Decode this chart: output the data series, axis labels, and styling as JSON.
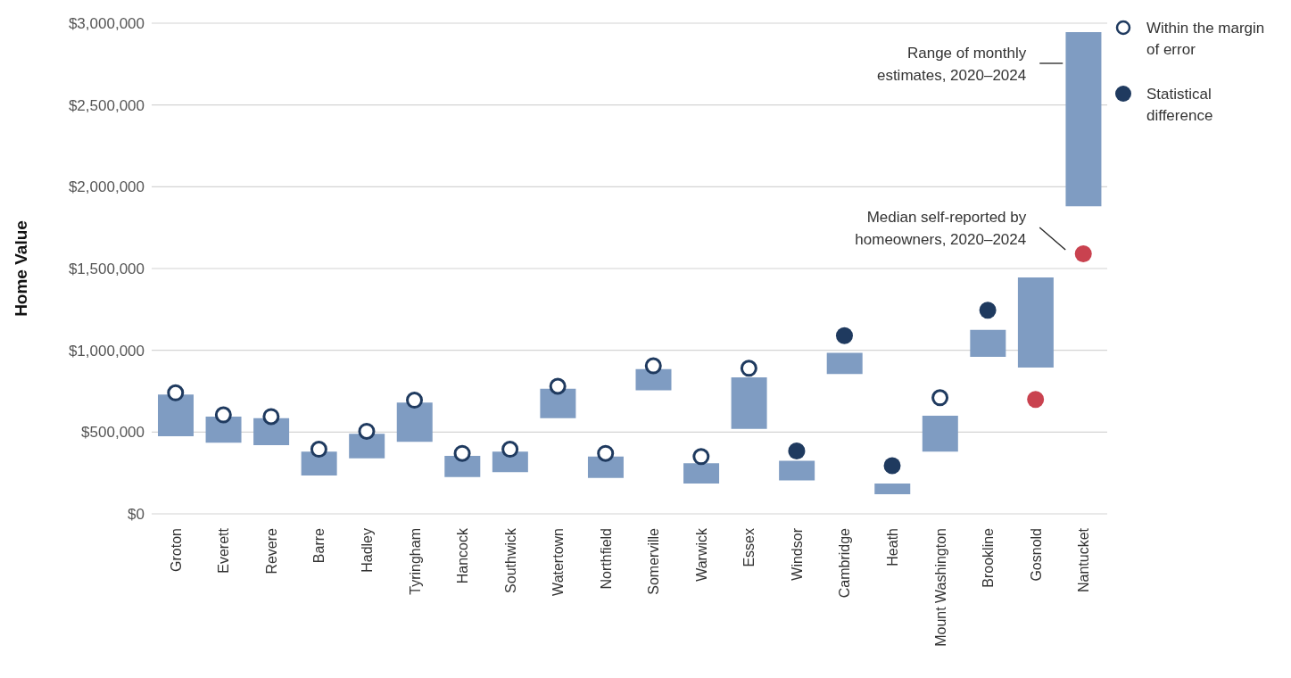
{
  "chart_data": {
    "type": "bar",
    "ylabel": "Home Value",
    "categories": [
      "Groton",
      "Everett",
      "Revere",
      "Barre",
      "Hadley",
      "Tyringham",
      "Hancock",
      "Southwick",
      "Watertown",
      "Northfield",
      "Somerville",
      "Warwick",
      "Essex",
      "Windsor",
      "Cambridge",
      "Heath",
      "Mount Washington",
      "Brookline",
      "Gosnold",
      "Nantucket"
    ],
    "series": [
      {
        "color": "#7f9cc2",
        "base": [
          475000,
          435000,
          420000,
          235000,
          340000,
          440000,
          225000,
          255000,
          585000,
          220000,
          755000,
          185000,
          520000,
          205000,
          855000,
          120000,
          380000,
          960000,
          895000,
          1880000
        ],
        "values": [
          255000,
          160000,
          165000,
          145000,
          150000,
          240000,
          130000,
          125000,
          180000,
          130000,
          130000,
          125000,
          315000,
          120000,
          130000,
          65000,
          220000,
          165000,
          550000,
          1065000
        ]
      },
      {
        "type": "scatter",
        "name": "Within the margin of error",
        "color": "#1f3a5f",
        "x": [
          "Groton",
          "Everett",
          "Revere",
          "Barre",
          "Hadley",
          "Tyringham",
          "Hancock",
          "Southwick",
          "Watertown",
          "Northfield",
          "Somerville",
          "Warwick",
          "Essex",
          "Mount Washington"
        ],
        "values": [
          740000,
          605000,
          595000,
          395000,
          505000,
          695000,
          370000,
          395000,
          780000,
          370000,
          905000,
          350000,
          890000,
          710000
        ]
      },
      {
        "type": "scatter",
        "name": "Statistical difference",
        "color": "#1f3a5f",
        "x": [
          "Windsor",
          "Cambridge",
          "Heath",
          "Brookline"
        ],
        "values": [
          385000,
          1090000,
          295000,
          1245000
        ]
      },
      {
        "type": "scatter",
        "color": "#c9424f",
        "x": [
          "Gosnold",
          "Nantucket"
        ],
        "values": [
          700000,
          1590000
        ]
      }
    ],
    "ylim": [
      0,
      3000000
    ],
    "yticks": [
      {
        "value": 0,
        "label": "$0"
      },
      {
        "value": 500000,
        "label": "$500,000"
      },
      {
        "value": 1000000,
        "label": "$1,000,000"
      },
      {
        "value": 1500000,
        "label": "$1,500,000"
      },
      {
        "value": 2000000,
        "label": "$2,000,000"
      },
      {
        "value": 2500000,
        "label": "$2,500,000"
      },
      {
        "value": 3000000,
        "label": "$3,000,000"
      }
    ],
    "annotations": [
      "Range of monthly estimates, 2020–2024",
      "Median self-reported by homeowners, 2020–2024"
    ],
    "grid": "y",
    "legend": "top right",
    "marker": "circle"
  }
}
